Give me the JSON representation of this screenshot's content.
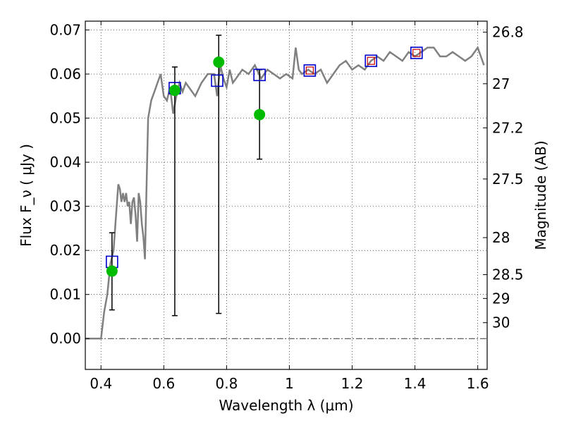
{
  "chart_data": {
    "type": "scatter",
    "title": "",
    "xlabel": "Wavelength  λ (μm)",
    "ylabel": "Flux  F_ν  ( μJy )",
    "ylabel_right": "Magnitude (AB)",
    "xlim": [
      0.35,
      1.63
    ],
    "ylim": [
      -0.007,
      0.072
    ],
    "grid": true,
    "x_ticks": [
      0.4,
      0.6,
      0.8,
      1.0,
      1.2,
      1.4,
      1.6
    ],
    "x_tick_labels": [
      "0.4",
      "0.6",
      "0.8",
      "1",
      "1.2",
      "1.4",
      "1.6"
    ],
    "y_ticks": [
      0.0,
      0.01,
      0.02,
      0.03,
      0.04,
      0.05,
      0.06,
      0.07
    ],
    "y_tick_labels": [
      "0.00",
      "0.01",
      "0.02",
      "0.03",
      "0.04",
      "0.05",
      "0.06",
      "0.07"
    ],
    "mag_ticks": [
      {
        "flux": 0.0695,
        "label": "26.8"
      },
      {
        "flux": 0.0578,
        "label": "27"
      },
      {
        "flux": 0.0478,
        "label": "27.2"
      },
      {
        "flux": 0.0362,
        "label": "27.5"
      },
      {
        "flux": 0.0229,
        "label": "28"
      },
      {
        "flux": 0.0145,
        "label": "28.5"
      },
      {
        "flux": 0.0091,
        "label": "29"
      },
      {
        "flux": 0.0036,
        "label": "30"
      }
    ],
    "colors": {
      "spectrum": "#808080",
      "observed": "#00bb00",
      "model_box": "#0000cc",
      "model_inner": "#cc0000",
      "errorbar": "#000000"
    },
    "series": [
      {
        "kind": "spectrum",
        "x": [
          0.35,
          0.4,
          0.41,
          0.42,
          0.43,
          0.44,
          0.45,
          0.455,
          0.46,
          0.465,
          0.47,
          0.475,
          0.48,
          0.485,
          0.49,
          0.495,
          0.5,
          0.505,
          0.51,
          0.515,
          0.52,
          0.525,
          0.53,
          0.535,
          0.54,
          0.545,
          0.55,
          0.56,
          0.57,
          0.58,
          0.59,
          0.6,
          0.61,
          0.62,
          0.63,
          0.64,
          0.65,
          0.66,
          0.67,
          0.68,
          0.7,
          0.72,
          0.74,
          0.76,
          0.77,
          0.78,
          0.79,
          0.8,
          0.81,
          0.82,
          0.83,
          0.85,
          0.87,
          0.89,
          0.91,
          0.93,
          0.95,
          0.97,
          0.99,
          1.01,
          1.02,
          1.03,
          1.04,
          1.06,
          1.08,
          1.1,
          1.12,
          1.14,
          1.16,
          1.18,
          1.2,
          1.22,
          1.24,
          1.26,
          1.28,
          1.3,
          1.32,
          1.34,
          1.36,
          1.38,
          1.4,
          1.42,
          1.44,
          1.46,
          1.48,
          1.5,
          1.52,
          1.54,
          1.56,
          1.58,
          1.6,
          1.62
        ],
        "y": [
          0.0,
          0.0,
          0.006,
          0.01,
          0.017,
          0.02,
          0.03,
          0.035,
          0.034,
          0.031,
          0.033,
          0.031,
          0.033,
          0.03,
          0.031,
          0.026,
          0.031,
          0.032,
          0.028,
          0.022,
          0.033,
          0.031,
          0.026,
          0.023,
          0.018,
          0.034,
          0.05,
          0.054,
          0.056,
          0.058,
          0.06,
          0.055,
          0.054,
          0.057,
          0.051,
          0.055,
          0.058,
          0.056,
          0.058,
          0.057,
          0.055,
          0.058,
          0.06,
          0.06,
          0.055,
          0.062,
          0.059,
          0.057,
          0.061,
          0.058,
          0.059,
          0.061,
          0.06,
          0.062,
          0.059,
          0.061,
          0.06,
          0.059,
          0.06,
          0.059,
          0.066,
          0.061,
          0.06,
          0.061,
          0.06,
          0.061,
          0.058,
          0.06,
          0.062,
          0.063,
          0.061,
          0.062,
          0.061,
          0.063,
          0.064,
          0.063,
          0.065,
          0.064,
          0.063,
          0.065,
          0.064,
          0.065,
          0.066,
          0.066,
          0.064,
          0.064,
          0.065,
          0.064,
          0.063,
          0.064,
          0.066,
          0.062
        ]
      },
      {
        "kind": "observed",
        "x": [
          0.435,
          0.635,
          0.775,
          0.905
        ],
        "y": [
          0.0153,
          0.0563,
          0.0627,
          0.0508
        ],
        "yerr_low": [
          0.0065,
          0.0052,
          0.0057,
          0.0407
        ],
        "yerr_high": [
          0.024,
          0.0616,
          0.0688,
          0.061
        ]
      },
      {
        "kind": "model",
        "x": [
          0.435,
          0.635,
          0.77,
          0.905,
          1.065,
          1.26,
          1.405
        ],
        "y": [
          0.0174,
          0.0568,
          0.0585,
          0.0598,
          0.0608,
          0.063,
          0.0648
        ]
      }
    ]
  }
}
